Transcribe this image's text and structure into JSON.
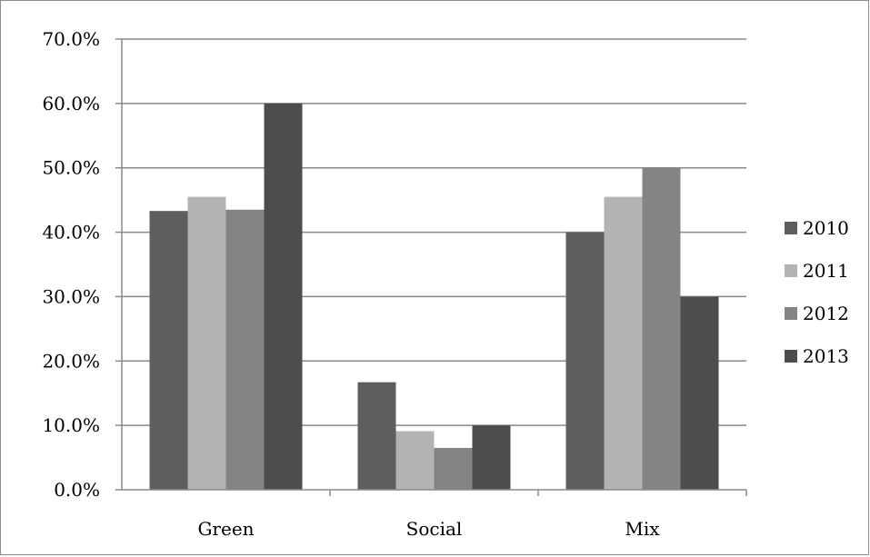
{
  "chart_data": {
    "type": "bar",
    "categories": [
      "Green",
      "Social",
      "Mix"
    ],
    "series": [
      {
        "name": "2010",
        "values": [
          43.3,
          16.7,
          40.0
        ],
        "color": "#5e5e5e"
      },
      {
        "name": "2011",
        "values": [
          45.5,
          9.1,
          45.5
        ],
        "color": "#b3b3b3"
      },
      {
        "name": "2012",
        "values": [
          43.5,
          6.5,
          50.0
        ],
        "color": "#848484"
      },
      {
        "name": "2013",
        "values": [
          60.0,
          10.0,
          30.0
        ],
        "color": "#4d4d4d"
      }
    ],
    "ylim": [
      0,
      70
    ],
    "y_ticks": [
      "0.0%",
      "10.0%",
      "20.0%",
      "30.0%",
      "40.0%",
      "50.0%",
      "60.0%",
      "70.0%"
    ],
    "grid": true,
    "legend_position": "right"
  }
}
